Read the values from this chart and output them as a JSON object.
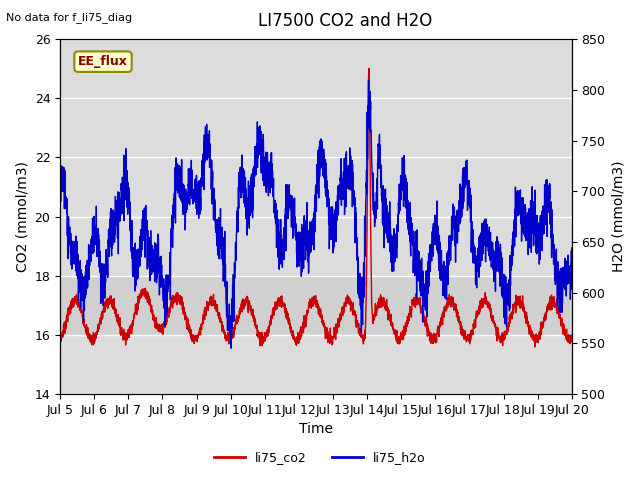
{
  "title": "LI7500 CO2 and H2O",
  "xlabel": "Time",
  "ylabel_left": "CO2 (mmol/m3)",
  "ylabel_right": "H2O (mmol/m3)",
  "ylim_left": [
    14,
    26
  ],
  "ylim_right": [
    500,
    850
  ],
  "xlim": [
    0,
    15
  ],
  "x_tick_labels": [
    "Jul 5",
    "Jul 6",
    "Jul 7",
    "Jul 8",
    "Jul 9",
    "Jul 10",
    "Jul 11",
    "Jul 12",
    "Jul 13",
    "Jul 14",
    "Jul 15",
    "Jul 16",
    "Jul 17",
    "Jul 18",
    "Jul 19",
    "Jul 20"
  ],
  "x_tick_positions": [
    0,
    1,
    2,
    3,
    4,
    5,
    6,
    7,
    8,
    9,
    10,
    11,
    12,
    13,
    14,
    15
  ],
  "annotation_text": "No data for f_li75_diag",
  "label_text": "EE_flux",
  "legend_co2": "li75_co2",
  "legend_h2o": "li75_h2o",
  "color_co2": "#cc0000",
  "color_h2o": "#0000cc",
  "background_color": "#dcdcdc",
  "band_color": "#c8c8c8",
  "figure_background": "#ffffff",
  "title_fontsize": 12,
  "axis_fontsize": 10,
  "tick_fontsize": 9
}
